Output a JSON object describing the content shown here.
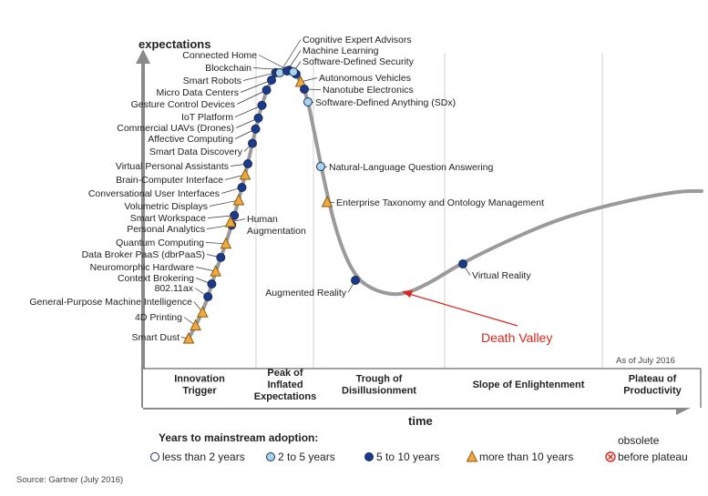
{
  "chart_data": {
    "type": "scatter",
    "ylabel": "expectations",
    "xlabel": "time",
    "as_of": "As of July 2016",
    "source": "Source: Gartner (July 2016)",
    "phases": [
      [
        "Innovation",
        "Trigger"
      ],
      [
        "Peak of",
        "Inflated",
        "Expectations"
      ],
      [
        "Trough of",
        "Disillusionment"
      ],
      [
        "Slope of Enlightenment"
      ],
      [
        "Plateau of",
        "Productivity"
      ]
    ],
    "legend": {
      "title": "Years to mainstream adoption:",
      "items": [
        {
          "symbol": "open",
          "label": "less than 2 years"
        },
        {
          "symbol": "light",
          "label": "2 to 5 years"
        },
        {
          "symbol": "dark",
          "label": "5 to 10 years"
        },
        {
          "symbol": "triangle",
          "label": "more than 10 years"
        },
        {
          "symbol": "x",
          "label_top": "obsolete",
          "label": "before plateau"
        }
      ]
    },
    "colors": {
      "curve": "#9a9a9a",
      "light": "#a8d4ef",
      "dark": "#1a3a8c",
      "triangle": "#f2a93b",
      "obsolete": "#d9261c",
      "annotation": "#d9261c"
    },
    "annotation": {
      "text": "Death Valley"
    },
    "points": [
      {
        "label": "Smart Dust",
        "t": 0.0,
        "kind": "triangle"
      },
      {
        "label": "4D Printing",
        "t": 0.045,
        "kind": "triangle"
      },
      {
        "label": "General-Purpose Machine Intelligence",
        "t": 0.09,
        "kind": "triangle"
      },
      {
        "label": "802.11ax",
        "t": 0.135,
        "kind": "dark"
      },
      {
        "label": "Context Brokering",
        "t": 0.17,
        "kind": "dark"
      },
      {
        "label": "Neuromorphic Hardware",
        "t": 0.205,
        "kind": "triangle"
      },
      {
        "label": "Data Broker PaaS (dbrPaaS)",
        "t": 0.245,
        "kind": "dark"
      },
      {
        "label": "Quantum Computing",
        "t": 0.285,
        "kind": "triangle"
      },
      {
        "label": "Personal Analytics",
        "t": 0.335,
        "kind": "dark"
      },
      {
        "label": "Smart Workspace",
        "t": 0.36,
        "kind": "dark"
      },
      {
        "label": "Volumetric Displays",
        "t": 0.4,
        "kind": "triangle"
      },
      {
        "label": "Conversational User Interfaces",
        "t": 0.435,
        "kind": "dark"
      },
      {
        "label": "Brain-Computer Interface",
        "t": 0.47,
        "kind": "triangle"
      },
      {
        "label": "Virtual Personal Assistants",
        "t": 0.5,
        "kind": "dark"
      },
      {
        "label": "Smart Data Discovery",
        "t": 0.55,
        "kind": "dark"
      },
      {
        "label": "Affective Computing",
        "t": 0.585,
        "kind": "dark"
      },
      {
        "label": "Commercial UAVs (Drones)",
        "t": 0.615,
        "kind": "dark"
      },
      {
        "label": "IoT Platform",
        "t": 0.655,
        "kind": "dark"
      },
      {
        "label": "Gesture Control Devices",
        "t": 0.705,
        "kind": "dark"
      },
      {
        "label": "Micro Data Centers",
        "t": 0.76,
        "kind": "dark"
      },
      {
        "label": "Smart Robots",
        "t": 0.805,
        "kind": "dark"
      },
      {
        "label": "Blockchain",
        "t": 0.92,
        "kind": "dark"
      },
      {
        "label": "Connected Home",
        "t": 0.99,
        "kind": "dark"
      },
      {
        "label": "Cognitive Expert Advisors",
        "t": 1.01,
        "kind": "light"
      },
      {
        "label": "Machine Learning",
        "t": 1.02,
        "kind": "dark"
      },
      {
        "label": "Software-Defined Security",
        "t": 1.03,
        "kind": "light"
      },
      {
        "label": "Autonomous Vehicles",
        "t": 1.06,
        "kind": "triangle"
      },
      {
        "label": "Nanotube Electronics",
        "t": 1.07,
        "kind": "dark"
      },
      {
        "label": "Software-Defined Anything (SDx)",
        "t": 1.11,
        "kind": "light"
      },
      {
        "label": "Natural-Language Question Answering",
        "t": 1.25,
        "kind": "light"
      },
      {
        "label": "Enterprise Taxonomy and Ontology Management",
        "t": 1.33,
        "kind": "triangle"
      },
      {
        "label": "Human Augmentation",
        "t": 0.37,
        "kind": "triangle"
      },
      {
        "label": "Augmented Reality",
        "t": 1.52,
        "kind": "dark"
      },
      {
        "label": "Virtual Reality",
        "t": 1.9,
        "kind": "dark"
      }
    ]
  }
}
